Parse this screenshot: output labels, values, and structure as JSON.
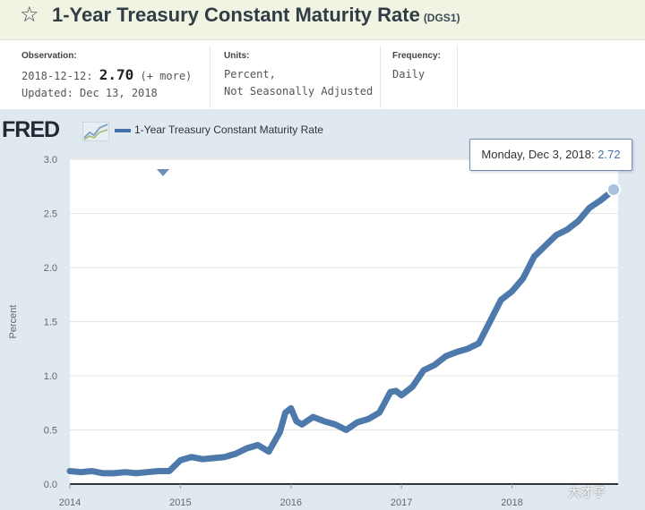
{
  "header": {
    "title": "1-Year Treasury Constant Maturity Rate",
    "series_id": "(DGS1)",
    "star_icon": "star-outline-icon"
  },
  "meta": {
    "observation_label": "Observation:",
    "observation_date": "2018-12-12:",
    "observation_value": "2.70",
    "observation_more": "(+ more)",
    "updated": "Updated: Dec 13, 2018",
    "units_label": "Units:",
    "units_line1": "Percent,",
    "units_line2": "Not Seasonally Adjusted",
    "frequency_label": "Frequency:",
    "frequency_value": "Daily"
  },
  "logo": {
    "text": "FRED",
    "icon": "line-chart-icon"
  },
  "tooltip": {
    "date": "Monday, Dec 3, 2018:",
    "value": "2.72"
  },
  "watermark": "大才子",
  "chart_data": {
    "type": "line",
    "title": "",
    "legend": "1-Year Treasury Constant Maturity Rate",
    "legend_position": "top-left",
    "xlabel": "",
    "ylabel": "Percent",
    "ylim": [
      0,
      3.0
    ],
    "y_ticks": [
      "0.0",
      "0.5",
      "1.0",
      "1.5",
      "2.0",
      "2.5",
      "3.0"
    ],
    "x_ticks": [
      "2014",
      "2015",
      "2016",
      "2017",
      "2018"
    ],
    "xlim": [
      2014.0,
      2018.96
    ],
    "grid": true,
    "color": "#4572a7",
    "series": [
      {
        "x": [
          2014.0,
          2014.1,
          2014.2,
          2014.3,
          2014.4,
          2014.5,
          2014.6,
          2014.7,
          2014.8,
          2014.9,
          2015.0,
          2015.1,
          2015.2,
          2015.3,
          2015.4,
          2015.5,
          2015.6,
          2015.7,
          2015.8,
          2015.9,
          2015.95,
          2016.0,
          2016.05,
          2016.1,
          2016.2,
          2016.3,
          2016.4,
          2016.5,
          2016.6,
          2016.7,
          2016.8,
          2016.9,
          2016.95,
          2017.0,
          2017.1,
          2017.2,
          2017.3,
          2017.4,
          2017.5,
          2017.6,
          2017.7,
          2017.8,
          2017.9,
          2018.0,
          2018.1,
          2018.2,
          2018.3,
          2018.4,
          2018.5,
          2018.6,
          2018.7,
          2018.8,
          2018.9,
          2018.92,
          2018.95
        ],
        "y": [
          0.12,
          0.11,
          0.12,
          0.1,
          0.1,
          0.11,
          0.1,
          0.11,
          0.12,
          0.12,
          0.22,
          0.25,
          0.23,
          0.24,
          0.25,
          0.28,
          0.33,
          0.36,
          0.3,
          0.48,
          0.66,
          0.7,
          0.58,
          0.55,
          0.62,
          0.58,
          0.55,
          0.5,
          0.57,
          0.6,
          0.66,
          0.85,
          0.86,
          0.82,
          0.9,
          1.05,
          1.1,
          1.18,
          1.22,
          1.25,
          1.3,
          1.5,
          1.7,
          1.78,
          1.9,
          2.1,
          2.2,
          2.3,
          2.35,
          2.43,
          2.55,
          2.62,
          2.7,
          2.72,
          2.7
        ]
      }
    ]
  }
}
